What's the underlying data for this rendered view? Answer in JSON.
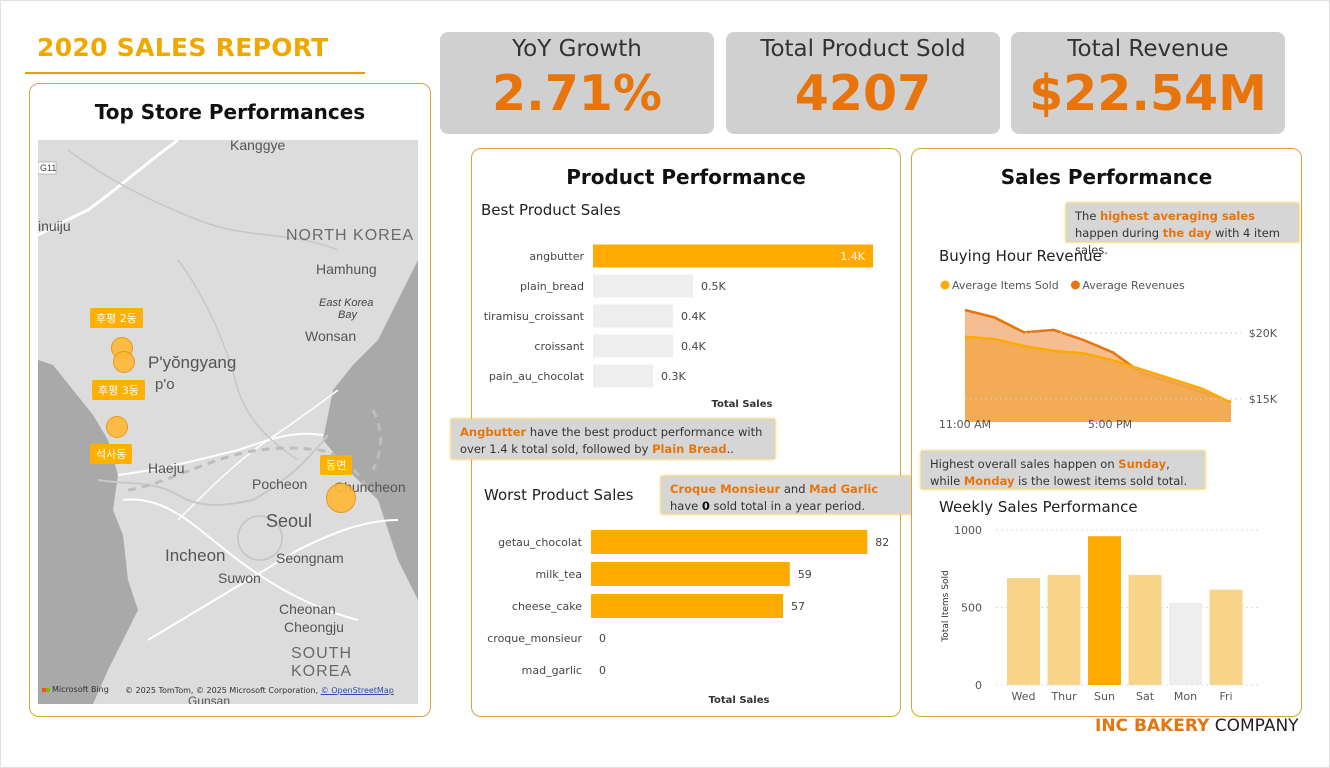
{
  "report_title": "2020 SALES REPORT",
  "kpis": [
    {
      "label": "YoY Growth",
      "value": "2.71%"
    },
    {
      "label": "Total Product Sold",
      "value": "4207"
    },
    {
      "label": "Total Revenue",
      "value": "$22.54M"
    }
  ],
  "map_panel": {
    "title": "Top Store Performances",
    "places": [
      "Kanggye",
      "G11",
      "inuiju",
      "NORTH KOREA",
      "Hamhung",
      "East Korea",
      "Bay",
      "Wonsan",
      "P'yŏngyang",
      "p'o",
      "Haeju",
      "Pocheon",
      "Chuncheon",
      "Seoul",
      "Incheon",
      "Seongnam",
      "Suwon",
      "Cheonan",
      "Cheongju",
      "SOUTH KOREA",
      "Gunsan"
    ],
    "stores": [
      "후평 2동",
      "후평 3동",
      "석사동",
      "동면"
    ],
    "attribution_brand": "Microsoft Bing",
    "attribution": "© 2025 TomTom, © 2025 Microsoft Corporation,",
    "attribution_link": "© OpenStreetMap"
  },
  "product_panel": {
    "title": "Product Performance",
    "best_title": "Best Product Sales",
    "worst_title": "Worst Product Sales",
    "axis_label": "Total Sales",
    "note_best": {
      "p1": "Angbutter",
      "p2": " have the best product performance with over 1.4 k total sold, followed by ",
      "p3": "Plain Bread",
      "p4": ".."
    },
    "note_worst": {
      "p1": "Croque Monsieur",
      "p2": " and ",
      "p3": "Mad Garlic",
      "p4": " have ",
      "p5": "0",
      "p6": " sold total in a year period."
    }
  },
  "sales_panel": {
    "title": "Sales Performance",
    "hour_title": "Buying Hour Revenue",
    "weekly_title": "Weekly Sales Performance",
    "note_hour": {
      "p1": "The ",
      "p2": "highest averaging sales",
      "p3": " happen during ",
      "p4": "the day",
      "p5": " with 4 item sales."
    },
    "note_week": {
      "p1": "Highest overall sales happen on ",
      "p2": "Sunday",
      "p3": ", while ",
      "p4": "Monday",
      "p5": " is the lowest  items sold total."
    }
  },
  "chart_data": [
    {
      "type": "bar",
      "orientation": "horizontal",
      "title": "Best Product Sales",
      "xlabel": "Total Sales",
      "categories": [
        "angbutter",
        "plain_bread",
        "tiramisu_croissant",
        "croissant",
        "pain_au_chocolat"
      ],
      "values": [
        1400,
        500,
        400,
        400,
        300
      ],
      "data_labels": [
        "1.4K",
        "0.5K",
        "0.4K",
        "0.4K",
        "0.3K"
      ],
      "colors": [
        "#ffaa00",
        "#eeeeee",
        "#eeeeee",
        "#eeeeee",
        "#eeeeee"
      ]
    },
    {
      "type": "bar",
      "orientation": "horizontal",
      "title": "Worst Product Sales",
      "xlabel": "Total Sales",
      "categories": [
        "getau_chocolat",
        "milk_tea",
        "cheese_cake",
        "croque_monsieur",
        "mad_garlic"
      ],
      "values": [
        82,
        59,
        57,
        0,
        0
      ],
      "data_labels": [
        "82",
        "59",
        "57",
        "0",
        "0"
      ],
      "color": "#ffaa00"
    },
    {
      "type": "area",
      "title": "Buying Hour Revenue",
      "x_ticks": [
        "11:00 AM",
        "5:00 PM"
      ],
      "y_ticks": [
        "$20K",
        "$15K"
      ],
      "legend_position": "top-left",
      "series": [
        {
          "name": "Average Items Sold",
          "color": "#ffaa00",
          "values": [
            4.0,
            3.9,
            3.6,
            3.4,
            3.3,
            3.0,
            2.6,
            2.2,
            1.8,
            1.2
          ]
        },
        {
          "name": "Average Revenues",
          "color": "#e8740c",
          "values": [
            22000,
            21400,
            20200,
            20400,
            19600,
            18600,
            16900,
            16200,
            15400,
            14600
          ]
        }
      ]
    },
    {
      "type": "bar",
      "title": "Weekly Sales Performance",
      "ylabel": "Total Items Sold",
      "categories": [
        "Wed",
        "Thur",
        "Sun",
        "Sat",
        "Mon",
        "Fri"
      ],
      "values": [
        690,
        710,
        960,
        710,
        530,
        615
      ],
      "ylim": [
        0,
        1000
      ],
      "y_ticks": [
        0,
        500,
        1000
      ],
      "colors": [
        "#f7d48a",
        "#f7d48a",
        "#ffaa00",
        "#f7d48a",
        "#eeeeee",
        "#f7d48a"
      ]
    }
  ],
  "footer": {
    "brand": "INC BAKERY",
    "rest": " COMPANY"
  }
}
